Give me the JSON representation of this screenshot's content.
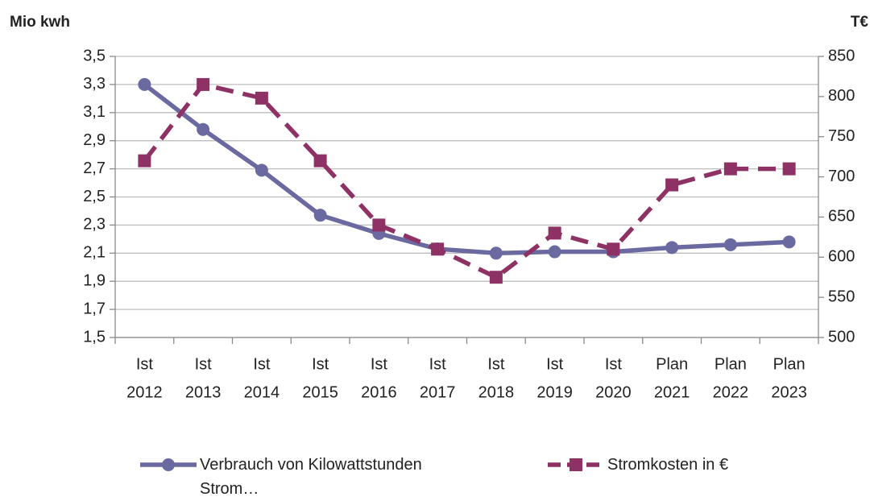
{
  "chart_data": {
    "type": "line",
    "ylabel": "Mio kwh",
    "y2label": "T€",
    "categories": [
      [
        "Ist",
        "2012"
      ],
      [
        "Ist",
        "2013"
      ],
      [
        "Ist",
        "2014"
      ],
      [
        "Ist",
        "2015"
      ],
      [
        "Ist",
        "2016"
      ],
      [
        "Ist",
        "2017"
      ],
      [
        "Ist",
        "2018"
      ],
      [
        "Ist",
        "2019"
      ],
      [
        "Ist",
        "2020"
      ],
      [
        "Plan",
        "2021"
      ],
      [
        "Plan",
        "2022"
      ],
      [
        "Plan",
        "2023"
      ]
    ],
    "series": [
      {
        "name": "Verbrauch von Kilowattstunden Strom…",
        "color": "#6a69a0",
        "marker": "circle",
        "dash": false,
        "values": [
          3.3,
          2.98,
          2.69,
          2.37,
          2.24,
          2.13,
          2.1,
          2.11,
          2.11,
          2.14,
          2.16,
          2.18
        ]
      },
      {
        "name": "Stromkosten in €",
        "color": "#8e3164",
        "marker": "square",
        "dash": true,
        "axis": "y2",
        "values": [
          720,
          815,
          798,
          720,
          640,
          610,
          575,
          630,
          610,
          690,
          710,
          710
        ]
      }
    ],
    "ylim": [
      1.5,
      3.5
    ],
    "yticks": [
      {
        "value": 1.5,
        "label": "1,5"
      },
      {
        "value": 1.7,
        "label": "1,7"
      },
      {
        "value": 1.9,
        "label": "1,9"
      },
      {
        "value": 2.1,
        "label": "2,1"
      },
      {
        "value": 2.3,
        "label": "2,3"
      },
      {
        "value": 2.5,
        "label": "2,5"
      },
      {
        "value": 2.7,
        "label": "2,7"
      },
      {
        "value": 2.9,
        "label": "2,9"
      },
      {
        "value": 3.1,
        "label": "3,1"
      },
      {
        "value": 3.3,
        "label": "3,3"
      },
      {
        "value": 3.5,
        "label": "3,5"
      }
    ],
    "y2lim": [
      500,
      850
    ],
    "y2ticks": [
      500,
      550,
      600,
      650,
      700,
      750,
      800,
      850
    ],
    "grid": true
  }
}
